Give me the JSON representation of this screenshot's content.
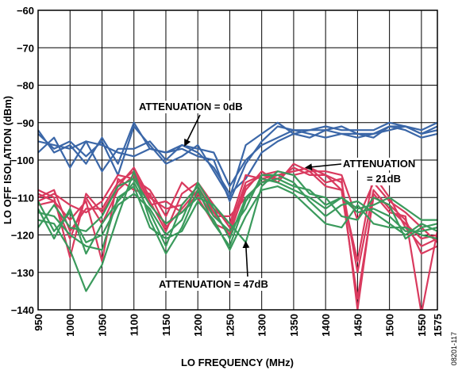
{
  "chart_data": {
    "type": "line",
    "xlabel": "LO FREQUENCY (MHz)",
    "ylabel": "LO OFF ISOLATION (dBm)",
    "xlim": [
      950,
      1575
    ],
    "ylim": [
      -140,
      -60
    ],
    "x_ticks": [
      "950",
      "1000",
      "1050",
      "1100",
      "1150",
      "1200",
      "1250",
      "1300",
      "1350",
      "1400",
      "1450",
      "1500",
      "1550",
      "1575"
    ],
    "y_ticks": [
      "−60",
      "−70",
      "−80",
      "−90",
      "−100",
      "−110",
      "−120",
      "−130",
      "−140"
    ],
    "grid": true,
    "x": [
      950,
      975,
      1000,
      1025,
      1050,
      1075,
      1100,
      1125,
      1150,
      1175,
      1200,
      1225,
      1250,
      1275,
      1300,
      1325,
      1350,
      1375,
      1400,
      1425,
      1450,
      1475,
      1500,
      1525,
      1550,
      1575
    ],
    "colors": {
      "att0": "#3b67a8",
      "att21": "#d93a5e",
      "att47": "#3a9a5c"
    },
    "series": [
      {
        "group": "att0",
        "values": [
          -98,
          -94,
          -102,
          -95,
          -103,
          -97,
          -97,
          -95,
          -100,
          -96,
          -97,
          -98,
          -107,
          -100,
          -96,
          -94,
          -92,
          -92,
          -91,
          -92,
          -92,
          -92,
          -90,
          -91,
          -93,
          -92
        ]
      },
      {
        "group": "att0",
        "values": [
          -95,
          -96,
          -97,
          -95,
          -96,
          -98,
          -99,
          -97,
          -98,
          -96,
          -98,
          -102,
          -109,
          -105,
          -98,
          -95,
          -93,
          -92,
          -92,
          -91,
          -93,
          -93,
          -91,
          -92,
          -94,
          -93
        ]
      },
      {
        "group": "att0",
        "values": [
          -93,
          -97,
          -95,
          -99,
          -95,
          -104,
          -91,
          -96,
          -101,
          -99,
          -96,
          -103,
          -110,
          -96,
          -93,
          -90,
          -93,
          -94,
          -92,
          -93,
          -94,
          -93,
          -92,
          -91,
          -92,
          -90
        ]
      },
      {
        "group": "att0",
        "values": [
          -92,
          -98,
          -96,
          -101,
          -94,
          -101,
          -90,
          -97,
          -98,
          -97,
          -99,
          -100,
          -111,
          -101,
          -95,
          -91,
          -92,
          -93,
          -94,
          -93,
          -93,
          -94,
          -91,
          -91,
          -93,
          -91
        ]
      },
      {
        "group": "att21",
        "values": [
          -110,
          -108,
          -119,
          -113,
          -113,
          -106,
          -103,
          -111,
          -119,
          -109,
          -106,
          -112,
          -118,
          -106,
          -104,
          -103,
          -104,
          -103,
          -103,
          -104,
          -116,
          -106,
          -111,
          -114,
          -118,
          -122
        ]
      },
      {
        "group": "att21",
        "values": [
          -109,
          -111,
          -121,
          -110,
          -117,
          -108,
          -104,
          -112,
          -111,
          -114,
          -109,
          -115,
          -115,
          -110,
          -106,
          -104,
          -103,
          -102,
          -104,
          -106,
          -130,
          -108,
          -113,
          -117,
          -121,
          -120
        ]
      },
      {
        "group": "att21",
        "values": [
          -111,
          -109,
          -112,
          -114,
          -111,
          -104,
          -105,
          -108,
          -115,
          -106,
          -110,
          -117,
          -119,
          -108,
          -103,
          -106,
          -101,
          -103,
          -107,
          -108,
          -137,
          -110,
          -112,
          -116,
          -125,
          -123
        ]
      },
      {
        "group": "att21",
        "values": [
          -108,
          -110,
          -126,
          -109,
          -114,
          -107,
          -102,
          -110,
          -113,
          -112,
          -107,
          -114,
          -120,
          -107,
          -104,
          -105,
          -102,
          -104,
          -104,
          -108,
          -127,
          -104,
          -110,
          -118,
          -123,
          -121
        ]
      },
      {
        "group": "att21",
        "values": [
          -112,
          -111,
          -116,
          -111,
          -127,
          -105,
          -108,
          -109,
          -118,
          -113,
          -108,
          -113,
          -117,
          -104,
          -105,
          -104,
          -103,
          -102,
          -106,
          -105,
          -140,
          -109,
          -114,
          -115,
          -141,
          -119
        ]
      },
      {
        "group": "att47",
        "values": [
          -111,
          -119,
          -114,
          -122,
          -120,
          -112,
          -109,
          -113,
          -120,
          -116,
          -106,
          -113,
          -121,
          -110,
          -106,
          -105,
          -107,
          -108,
          -112,
          -110,
          -114,
          -113,
          -115,
          -119,
          -119,
          -118
        ]
      },
      {
        "group": "att47",
        "values": [
          -113,
          -121,
          -113,
          -125,
          -117,
          -111,
          -106,
          -114,
          -123,
          -112,
          -107,
          -115,
          -119,
          -113,
          -104,
          -104,
          -106,
          -111,
          -115,
          -112,
          -111,
          -114,
          -117,
          -120,
          -117,
          -119
        ]
      },
      {
        "group": "att47",
        "values": [
          -116,
          -117,
          -124,
          -135,
          -128,
          -115,
          -103,
          -116,
          -125,
          -118,
          -108,
          -117,
          -123,
          -111,
          -105,
          -106,
          -108,
          -110,
          -113,
          -110,
          -113,
          -112,
          -110,
          -113,
          -116,
          -116
        ]
      },
      {
        "group": "att47",
        "values": [
          -118,
          -112,
          -118,
          -119,
          -115,
          -107,
          -105,
          -112,
          -117,
          -114,
          -110,
          -112,
          -117,
          -122,
          -107,
          -103,
          -104,
          -109,
          -110,
          -115,
          -116,
          -110,
          -112,
          -121,
          -118,
          -117
        ]
      },
      {
        "group": "att47",
        "values": [
          -114,
          -115,
          -120,
          -123,
          -124,
          -110,
          -107,
          -118,
          -121,
          -119,
          -111,
          -116,
          -124,
          -115,
          -108,
          -107,
          -109,
          -113,
          -117,
          -118,
          -112,
          -117,
          -118,
          -118,
          -120,
          -121
        ]
      }
    ],
    "annotations": [
      {
        "text": "ATTENUATION = 0dB",
        "arrow_to": [
          1180,
          -96
        ]
      },
      {
        "text": "ATTENUATION",
        "text2": "= 21dB",
        "arrow_to": [
          1370,
          -102
        ]
      },
      {
        "text": "ATTENUATION = 47dB",
        "arrow_to": [
          1275,
          -122
        ]
      }
    ],
    "figure_id": "08201-117"
  }
}
